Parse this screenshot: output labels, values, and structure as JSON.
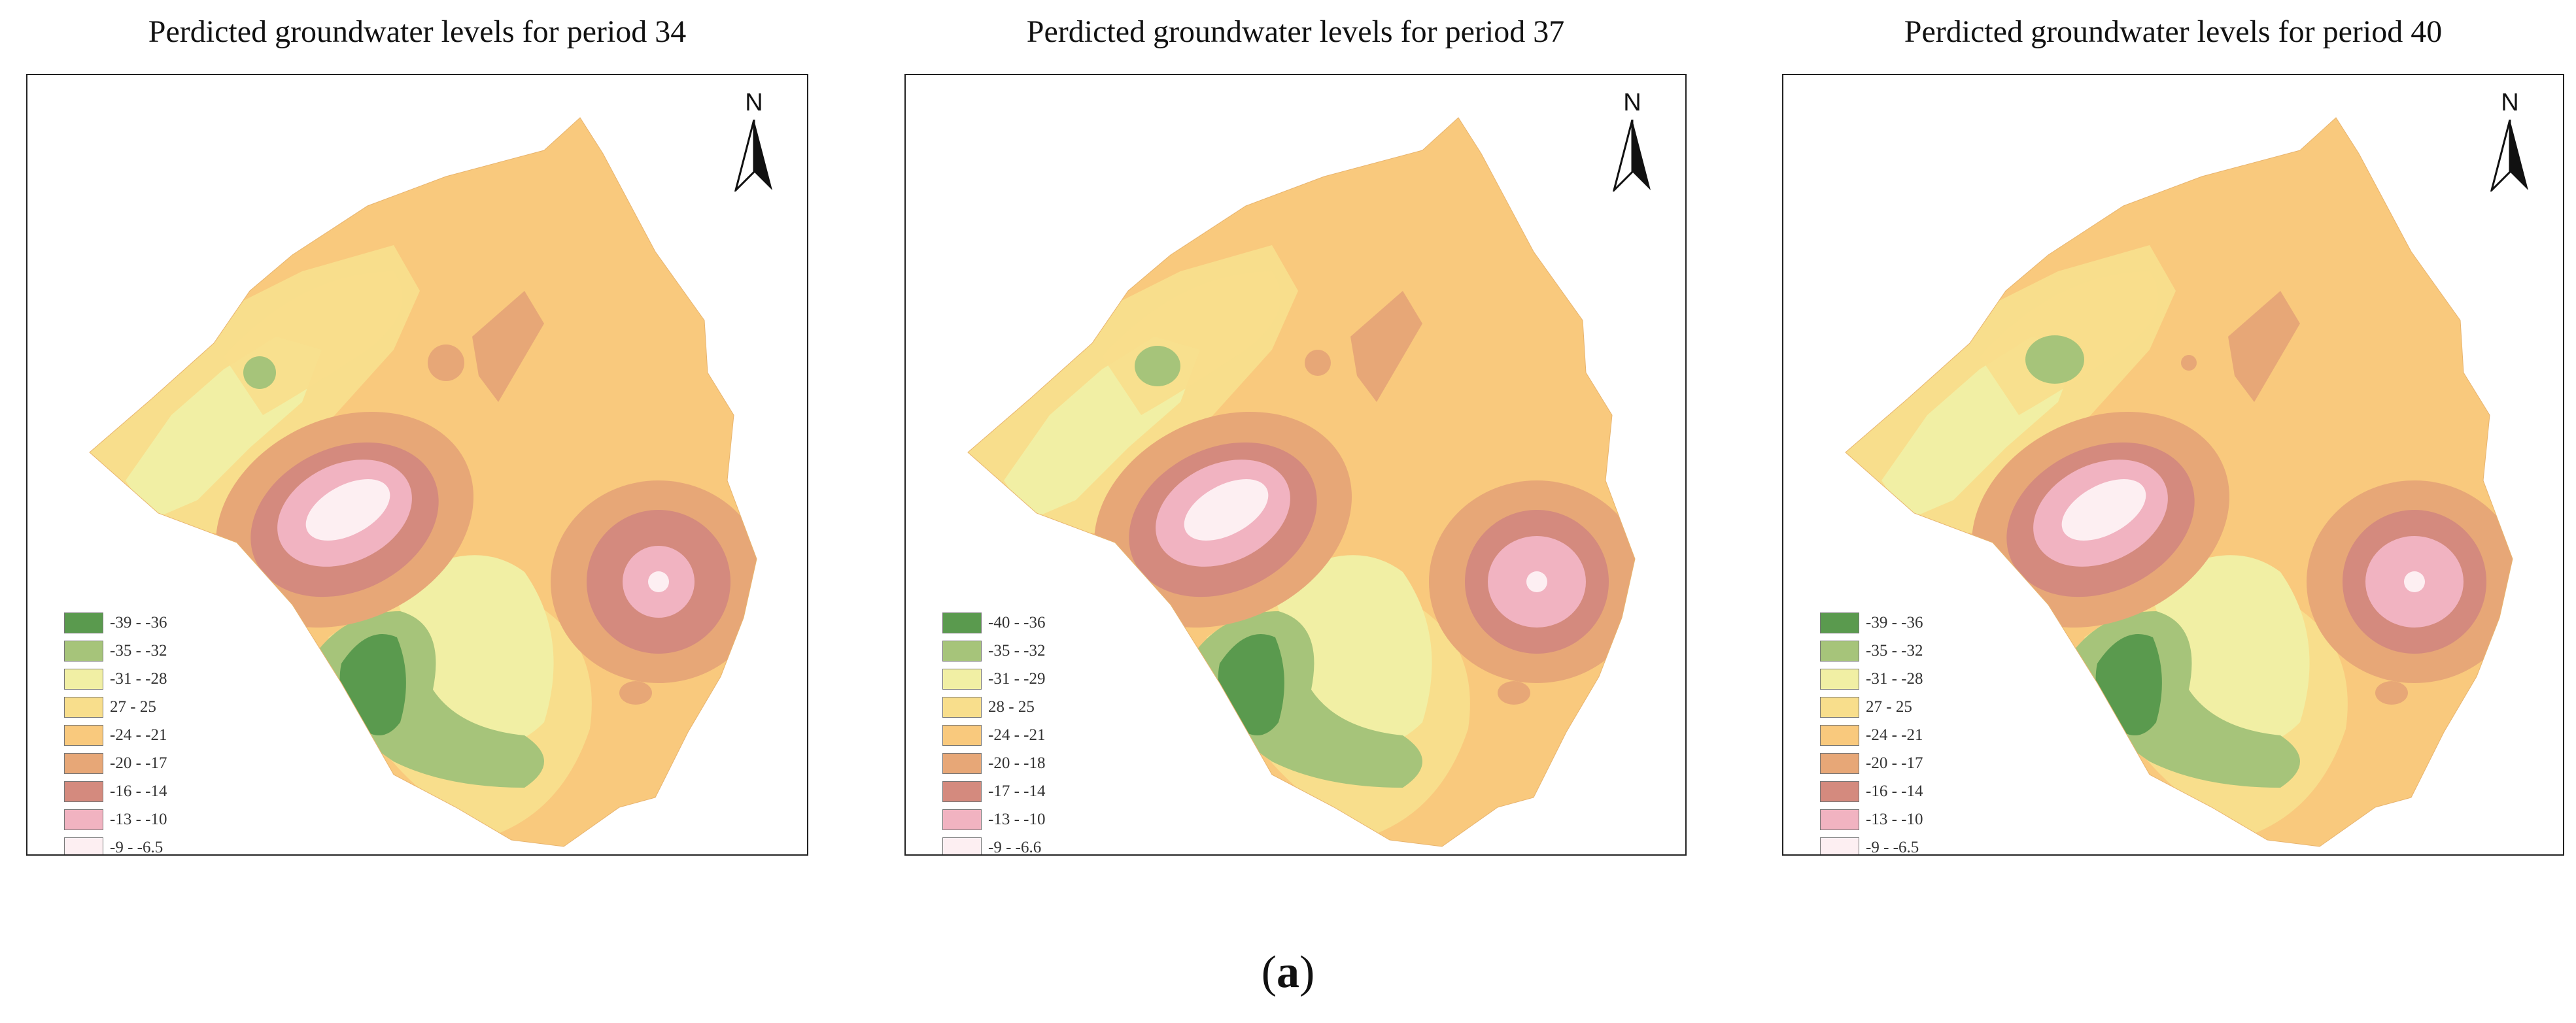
{
  "figure_caption": {
    "letter": "a"
  },
  "panels": [
    {
      "title": "Perdicted groundwater levels for period 34",
      "legend": [
        {
          "label": "-39 - -36",
          "color": "#5a9a4e"
        },
        {
          "label": "-35 - -32",
          "color": "#a6c47a"
        },
        {
          "label": "-31 - -28",
          "color": "#f1efa4"
        },
        {
          "label": "27 - 25",
          "color": "#f8de8c"
        },
        {
          "label": "-24 - -21",
          "color": "#f9c97d"
        },
        {
          "label": "-20 - -17",
          "color": "#e7a777"
        },
        {
          "label": "-16 - -14",
          "color": "#d48a7e"
        },
        {
          "label": "-13 - -10",
          "color": "#f1b3c1"
        },
        {
          "label": "-9 - -6.5",
          "color": "#fdeff2"
        }
      ],
      "north_label": "N"
    },
    {
      "title": "Perdicted groundwater levels for period 37",
      "legend": [
        {
          "label": "-40 - -36",
          "color": "#5a9a4e"
        },
        {
          "label": "-35 - -32",
          "color": "#a6c47a"
        },
        {
          "label": "-31 - -29",
          "color": "#f1efa4"
        },
        {
          "label": "28 - 25",
          "color": "#f8de8c"
        },
        {
          "label": "-24 - -21",
          "color": "#f9c97d"
        },
        {
          "label": "-20 - -18",
          "color": "#e7a777"
        },
        {
          "label": "-17 - -14",
          "color": "#d48a7e"
        },
        {
          "label": "-13 - -10",
          "color": "#f1b3c1"
        },
        {
          "label": "-9 - -6.6",
          "color": "#fdeff2"
        }
      ],
      "north_label": "N"
    },
    {
      "title": "Perdicted groundwater levels for period 40",
      "legend": [
        {
          "label": "-39 - -36",
          "color": "#5a9a4e"
        },
        {
          "label": "-35 - -32",
          "color": "#a6c47a"
        },
        {
          "label": "-31 - -28",
          "color": "#f1efa4"
        },
        {
          "label": "27 - 25",
          "color": "#f8de8c"
        },
        {
          "label": "-24 - -21",
          "color": "#f9c97d"
        },
        {
          "label": "-20 - -17",
          "color": "#e7a777"
        },
        {
          "label": "-16 - -14",
          "color": "#d48a7e"
        },
        {
          "label": "-13 - -10",
          "color": "#f1b3c1"
        },
        {
          "label": "-9 - -6.5",
          "color": "#fdeff2"
        }
      ],
      "north_label": "N"
    }
  ]
}
